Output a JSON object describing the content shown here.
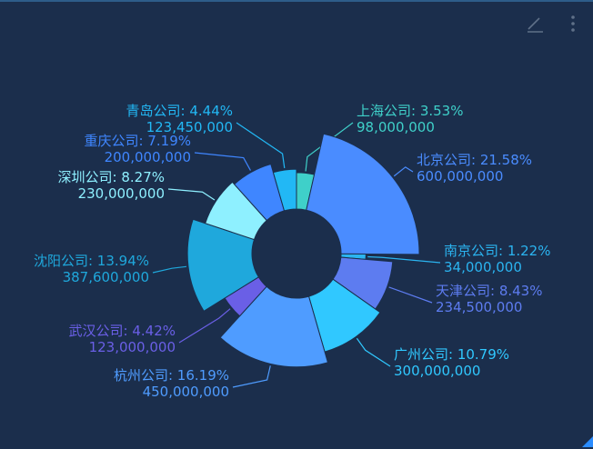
{
  "toolbar": {
    "edit_icon": "pencil-line-icon",
    "menu_icon": "more-vertical-icon"
  },
  "chart_data": {
    "type": "pie",
    "variant": "nightingale-rose-ring",
    "series": [
      {
        "name": "上海公司",
        "value": 98000000,
        "percent": "3.53%",
        "value_label": "98,000,000",
        "color": "#3fd0c9"
      },
      {
        "name": "北京公司",
        "value": 600000000,
        "percent": "21.58%",
        "value_label": "600,000,000",
        "color": "#4a8cff"
      },
      {
        "name": "南京公司",
        "value": 34000000,
        "percent": "1.22%",
        "value_label": "34,000,000",
        "color": "#2bb4f0"
      },
      {
        "name": "天津公司",
        "value": 234500000,
        "percent": "8.43%",
        "value_label": "234,500,000",
        "color": "#5d7cf0"
      },
      {
        "name": "广州公司",
        "value": 300000000,
        "percent": "10.79%",
        "value_label": "300,000,000",
        "color": "#30c8ff"
      },
      {
        "name": "杭州公司",
        "value": 450000000,
        "percent": "16.19%",
        "value_label": "450,000,000",
        "color": "#4f9cff"
      },
      {
        "name": "武汉公司",
        "value": 123000000,
        "percent": "4.42%",
        "value_label": "123,000,000",
        "color": "#6a5fe6"
      },
      {
        "name": "沈阳公司",
        "value": 387600000,
        "percent": "13.94%",
        "value_label": "387,600,000",
        "color": "#1fa8dc"
      },
      {
        "name": "深圳公司",
        "value": 230000000,
        "percent": "8.27%",
        "value_label": "230,000,000",
        "color": "#8ef0ff"
      },
      {
        "name": "重庆公司",
        "value": 200000000,
        "percent": "7.19%",
        "value_label": "200,000,000",
        "color": "#3f86ff"
      },
      {
        "name": "青岛公司",
        "value": 123450000,
        "percent": "4.44%",
        "value_label": "123,450,000",
        "color": "#22b8f5"
      }
    ]
  }
}
